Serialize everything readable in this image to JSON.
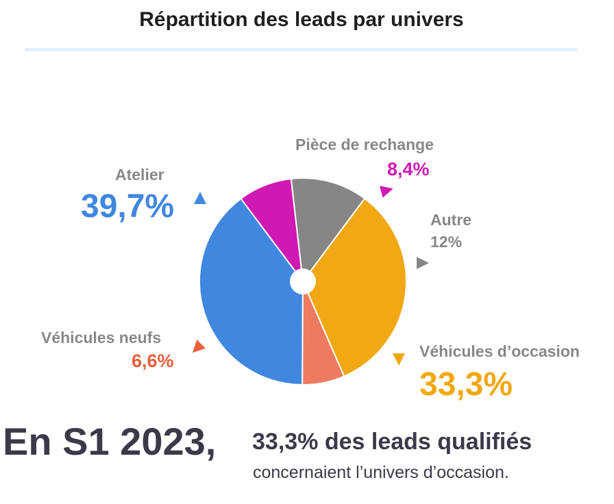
{
  "chart_data": {
    "type": "pie",
    "title": "Répartition des leads par univers",
    "slices": [
      {
        "name": "Atelier",
        "value": 39.7,
        "label": "39,7%",
        "color": "#4087e0"
      },
      {
        "name": "Pièce de rechange",
        "value": 8.4,
        "label": "8,4%",
        "color": "#d018b3"
      },
      {
        "name": "Autre",
        "value": 12,
        "label": "12%",
        "color": "#868686"
      },
      {
        "name": "Véhicules d’occasion",
        "value": 33.3,
        "label": "33,3%",
        "color": "#f2a813"
      },
      {
        "name": "Véhicules neufs",
        "value": 6.6,
        "label": "6,6%",
        "color": "#ee7b5f"
      }
    ]
  },
  "footer": {
    "period": "En S1 2023,",
    "headline": "33,3% des leads qualifiés",
    "subline": "concernaient l’univers d’occasion."
  }
}
